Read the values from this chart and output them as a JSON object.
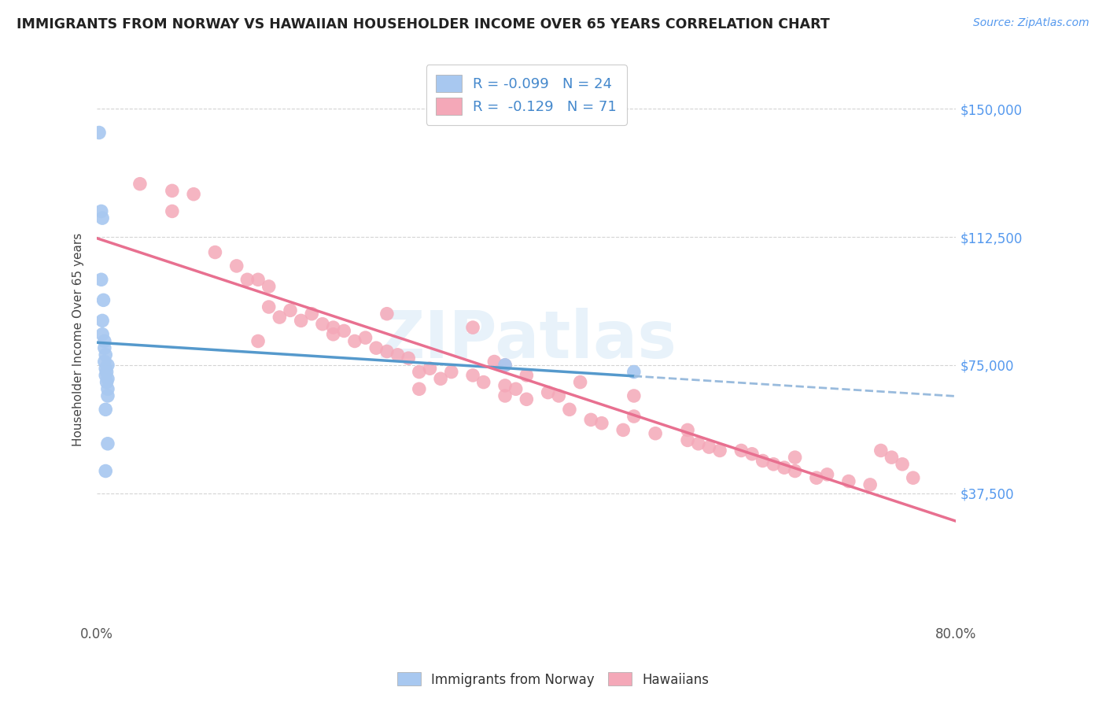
{
  "title": "IMMIGRANTS FROM NORWAY VS HAWAIIAN HOUSEHOLDER INCOME OVER 65 YEARS CORRELATION CHART",
  "source": "Source: ZipAtlas.com",
  "ylabel": "Householder Income Over 65 years",
  "ytick_labels": [
    "$37,500",
    "$75,000",
    "$112,500",
    "$150,000"
  ],
  "ytick_values": [
    37500,
    75000,
    112500,
    150000
  ],
  "ymin": 0,
  "ymax": 165000,
  "xmin": 0.0,
  "xmax": 0.8,
  "norway_color": "#a8c8f0",
  "hawaii_color": "#f4a8b8",
  "norway_line_color": "#5599cc",
  "hawaii_line_color": "#e87090",
  "norway_dashed_color": "#99bbdd",
  "watermark": "ZIPatlas",
  "norway_x": [
    0.002,
    0.004,
    0.005,
    0.004,
    0.006,
    0.005,
    0.005,
    0.007,
    0.007,
    0.008,
    0.007,
    0.008,
    0.008,
    0.009,
    0.01,
    0.01,
    0.008,
    0.01,
    0.009,
    0.01,
    0.01,
    0.008,
    0.38,
    0.5
  ],
  "norway_y": [
    143000,
    120000,
    118000,
    100000,
    94000,
    88000,
    84000,
    82000,
    80000,
    78000,
    76000,
    74000,
    72000,
    70000,
    68000,
    66000,
    62000,
    75000,
    73000,
    71000,
    52000,
    44000,
    75000,
    73000
  ],
  "hawaii_x": [
    0.04,
    0.07,
    0.09,
    0.11,
    0.13,
    0.14,
    0.15,
    0.16,
    0.16,
    0.17,
    0.18,
    0.19,
    0.2,
    0.21,
    0.22,
    0.22,
    0.23,
    0.24,
    0.25,
    0.26,
    0.27,
    0.28,
    0.29,
    0.3,
    0.3,
    0.31,
    0.32,
    0.33,
    0.35,
    0.35,
    0.36,
    0.37,
    0.38,
    0.38,
    0.39,
    0.4,
    0.4,
    0.42,
    0.43,
    0.44,
    0.45,
    0.46,
    0.47,
    0.49,
    0.5,
    0.52,
    0.55,
    0.56,
    0.57,
    0.58,
    0.6,
    0.61,
    0.62,
    0.63,
    0.64,
    0.65,
    0.67,
    0.68,
    0.7,
    0.72,
    0.73,
    0.74,
    0.75,
    0.76,
    0.5,
    0.38,
    0.27,
    0.15,
    0.07,
    0.55,
    0.65
  ],
  "hawaii_y": [
    128000,
    126000,
    125000,
    108000,
    104000,
    100000,
    100000,
    98000,
    92000,
    89000,
    91000,
    88000,
    90000,
    87000,
    86000,
    84000,
    85000,
    82000,
    83000,
    80000,
    79000,
    78000,
    77000,
    73000,
    68000,
    74000,
    71000,
    73000,
    86000,
    72000,
    70000,
    76000,
    75000,
    69000,
    68000,
    72000,
    65000,
    67000,
    66000,
    62000,
    70000,
    59000,
    58000,
    56000,
    66000,
    55000,
    53000,
    52000,
    51000,
    50000,
    50000,
    49000,
    47000,
    46000,
    45000,
    44000,
    42000,
    43000,
    41000,
    40000,
    50000,
    48000,
    46000,
    42000,
    60000,
    66000,
    90000,
    82000,
    120000,
    56000,
    48000
  ]
}
